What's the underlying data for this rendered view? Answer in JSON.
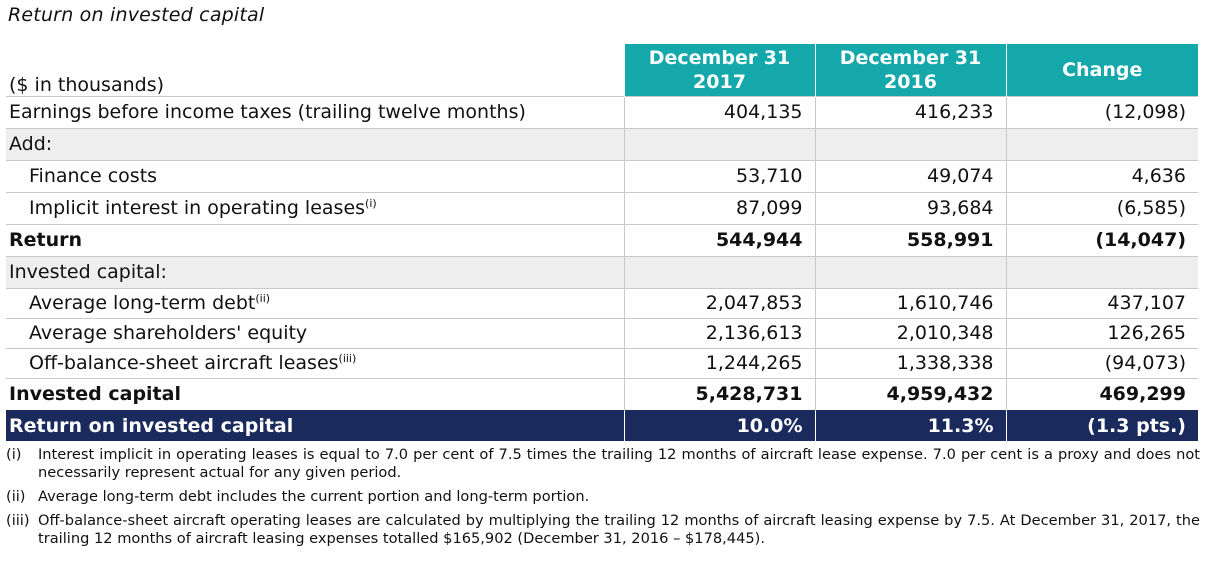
{
  "title": "Return on invested capital",
  "units": "($ in thousands)",
  "columns": [
    {
      "line1": "December 31",
      "line2": "2017"
    },
    {
      "line1": "December 31",
      "line2": "2016"
    },
    {
      "line1": "Change"
    }
  ],
  "rows": {
    "ebit": {
      "label": "Earnings before income taxes (trailing twelve months)",
      "v2017": "404,135",
      "v2016": "416,233",
      "change": "(12,098)"
    },
    "add": {
      "label": "Add:"
    },
    "finance_costs": {
      "label": "Finance costs",
      "v2017": "53,710",
      "v2016": "49,074",
      "change": "4,636"
    },
    "implicit_interest": {
      "label": "Implicit interest in operating leases",
      "sup": "(i)",
      "v2017": "87,099",
      "v2016": "93,684",
      "change": "(6,585)"
    },
    "return": {
      "label": "Return",
      "v2017": "544,944",
      "v2016": "558,991",
      "change": "(14,047)"
    },
    "invested_capital_header": {
      "label": "Invested capital:"
    },
    "avg_ltd": {
      "label": "Average long-term debt",
      "sup": "(ii)",
      "v2017": "2,047,853",
      "v2016": "1,610,746",
      "change": "437,107"
    },
    "avg_equity": {
      "label": "Average shareholders' equity",
      "v2017": "2,136,613",
      "v2016": "2,010,348",
      "change": "126,265"
    },
    "off_bs_leases": {
      "label": "Off-balance-sheet aircraft leases",
      "sup": "(iii)",
      "v2017": "1,244,265",
      "v2016": "1,338,338",
      "change": "(94,073)"
    },
    "invested_capital": {
      "label": "Invested capital",
      "v2017": "5,428,731",
      "v2016": "4,959,432",
      "change": "469,299"
    },
    "roic": {
      "label": "Return on invested capital",
      "v2017": "10.0%",
      "v2016": "11.3%",
      "change": "(1.3 pts.)"
    }
  },
  "footnotes": [
    {
      "marker": "(i)",
      "text": "Interest implicit in operating leases is equal to 7.0 per cent of 7.5 times the trailing 12 months of aircraft lease expense. 7.0 per cent is a proxy and does not necessarily represent actual for any given period."
    },
    {
      "marker": "(ii)",
      "text": "Average long-term debt includes the current portion and long-term portion."
    },
    {
      "marker": "(iii)",
      "text": "Off-balance-sheet aircraft operating leases are calculated by multiplying the trailing 12 months of aircraft leasing expense by 7.5. At December 31, 2017, the trailing 12 months of aircraft leasing expenses totalled $165,902 (December 31, 2016 – $178,445)."
    }
  ],
  "colors": {
    "header_teal": "#15a8aa",
    "roic_navy": "#1b2a5c",
    "shade_gray": "#eeeeee"
  }
}
